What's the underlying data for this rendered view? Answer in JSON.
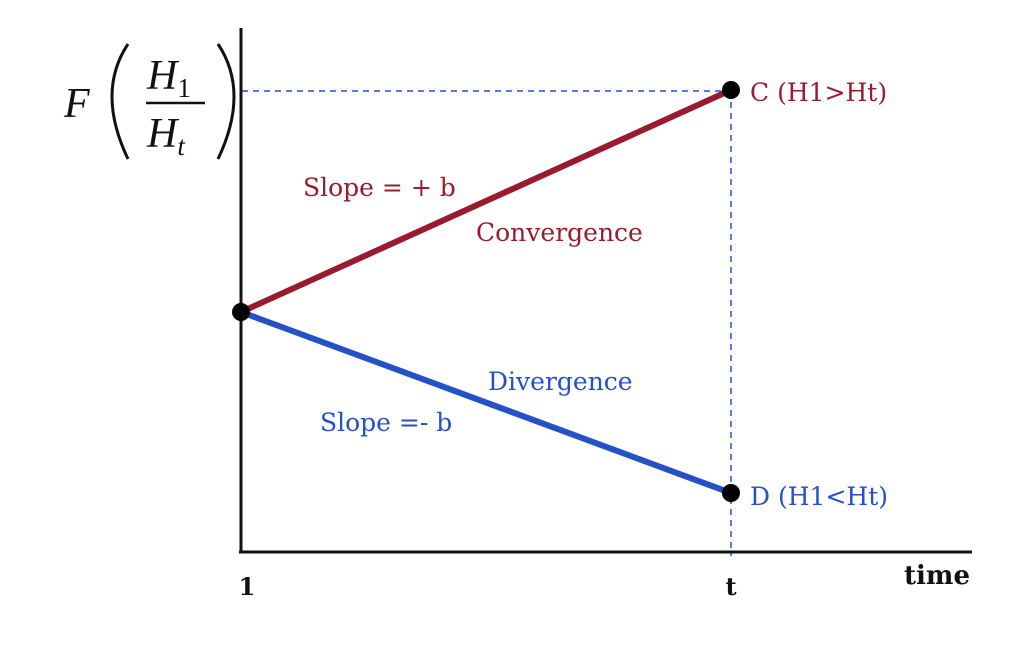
{
  "colors": {
    "convergence": "#9b1b2e",
    "divergence": "#2451c7",
    "axis": "#111111",
    "guide": "#2451c7",
    "point": "#000000"
  },
  "axes": {
    "y_label": {
      "function": "F",
      "numerator": "H",
      "numerator_sub": "1",
      "denominator": "H",
      "denominator_sub": "t"
    },
    "x_label": "time",
    "x_ticks": [
      "1",
      "t"
    ]
  },
  "convergence": {
    "slope_label": "Slope = + b",
    "name": "Convergence",
    "end_label": "C (H1>Ht)"
  },
  "divergence": {
    "slope_label": "Slope =- b",
    "name": "Divergence",
    "end_label": "D (H1<Ht)"
  }
}
